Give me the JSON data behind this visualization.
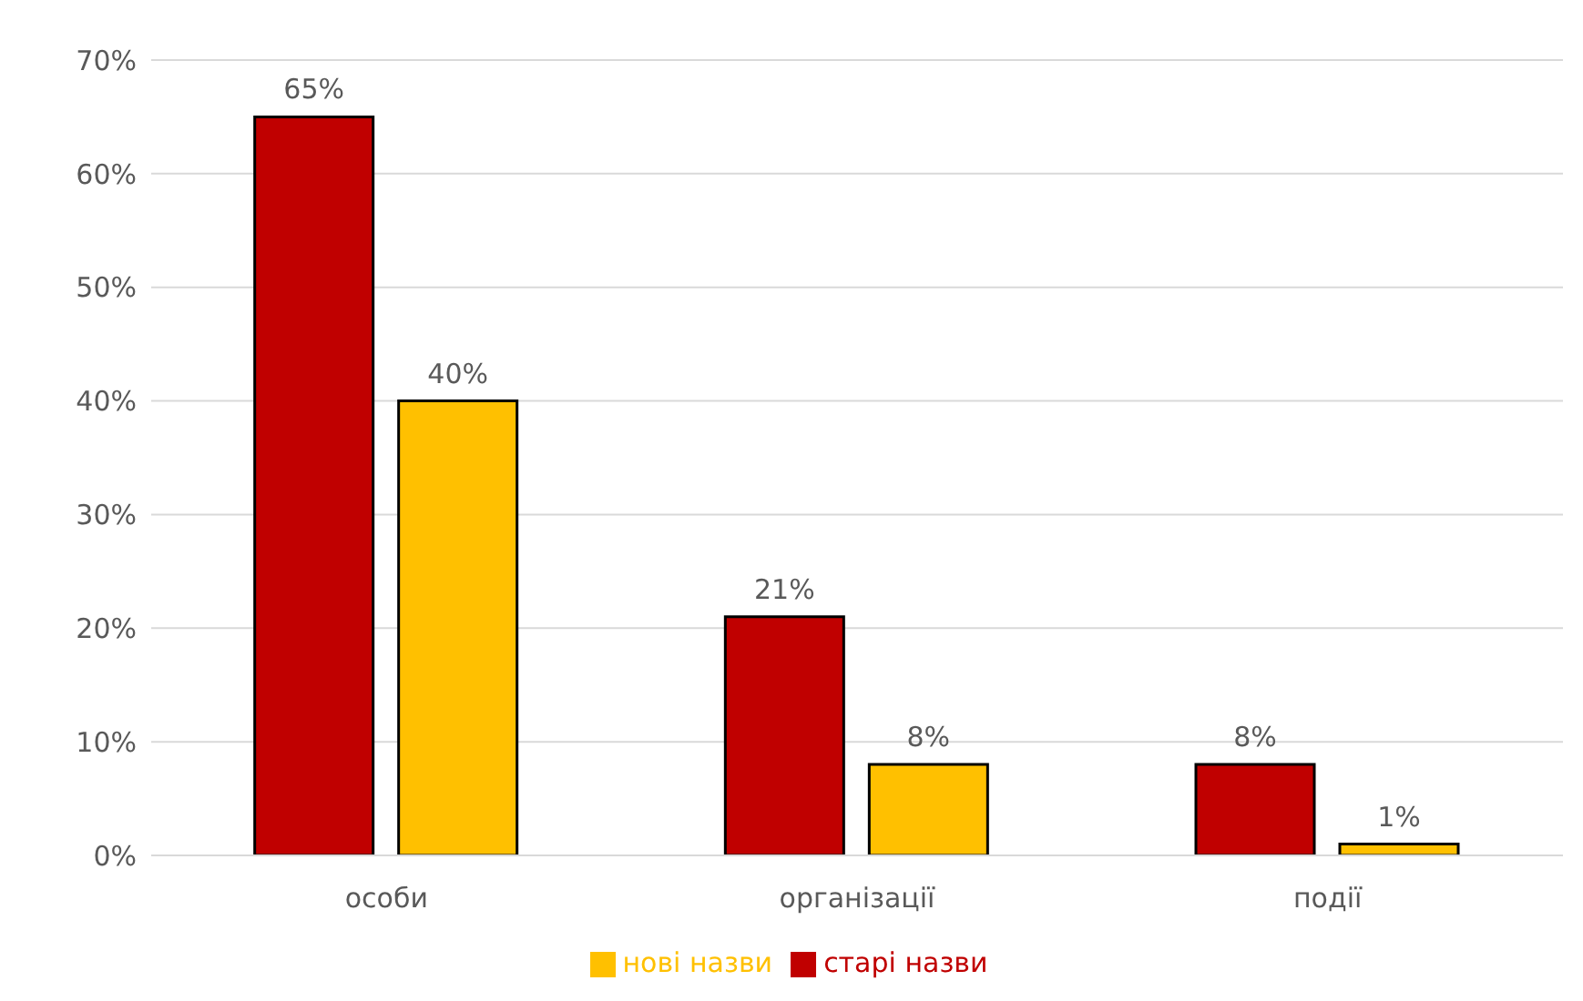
{
  "chart_data": {
    "type": "bar",
    "categories": [
      "особи",
      "організації",
      "події"
    ],
    "series": [
      {
        "name": "старі назви",
        "color": "#c00000",
        "values": [
          65,
          21,
          8
        ],
        "value_labels": [
          "65%",
          "21%",
          "8%"
        ]
      },
      {
        "name": "нові назви",
        "color": "#ffc000",
        "values": [
          40,
          8,
          1
        ],
        "value_labels": [
          "40%",
          "8%",
          "1%"
        ]
      }
    ],
    "ylim": [
      0,
      70
    ],
    "yticks": [
      {
        "value": 0,
        "label": "0%"
      },
      {
        "value": 10,
        "label": "10%"
      },
      {
        "value": 20,
        "label": "20%"
      },
      {
        "value": 30,
        "label": "30%"
      },
      {
        "value": 40,
        "label": "40%"
      },
      {
        "value": 50,
        "label": "50%"
      },
      {
        "value": 60,
        "label": "60%"
      },
      {
        "value": 70,
        "label": "70%"
      }
    ],
    "grid": "y",
    "legend": "bottom"
  }
}
